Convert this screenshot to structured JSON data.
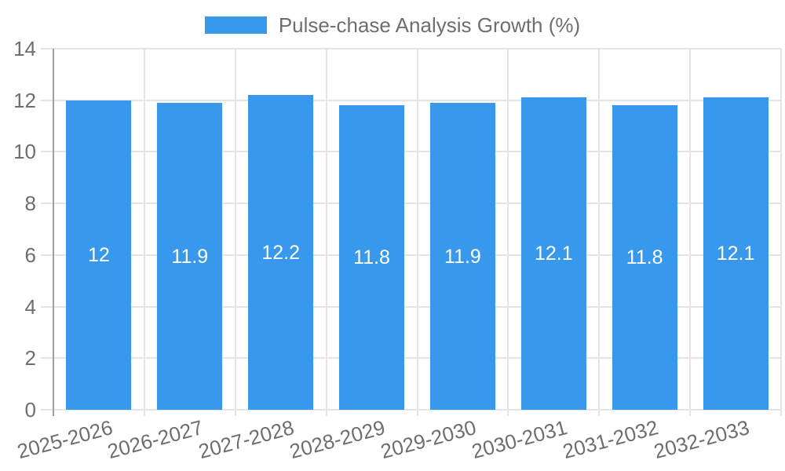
{
  "chart_data": {
    "type": "bar",
    "title": "Pulse-chase Analysis Growth (%)",
    "categories": [
      "2025-2026",
      "2026-2027",
      "2027-2028",
      "2028-2029",
      "2029-2030",
      "2030-2031",
      "2031-2032",
      "2032-2033"
    ],
    "values": [
      12,
      11.9,
      12.2,
      11.8,
      11.9,
      12.1,
      11.8,
      12.1
    ],
    "value_labels": [
      "12",
      "11.9",
      "12.2",
      "11.8",
      "11.9",
      "12.1",
      "11.8",
      "12.1"
    ],
    "xlabel": "",
    "ylabel": "",
    "ylim": [
      0,
      14
    ],
    "yticks": [
      0,
      2,
      4,
      6,
      8,
      10,
      12,
      14
    ],
    "grid": true,
    "legend_position": "top-center",
    "colors": {
      "bar": "#3899ec",
      "bar_value_text": "#ffffff",
      "axis_text": "#6e6e6e",
      "gridline": "#e4e4e4",
      "axis_line": "#9e9e9e",
      "background": "#ffffff"
    }
  }
}
